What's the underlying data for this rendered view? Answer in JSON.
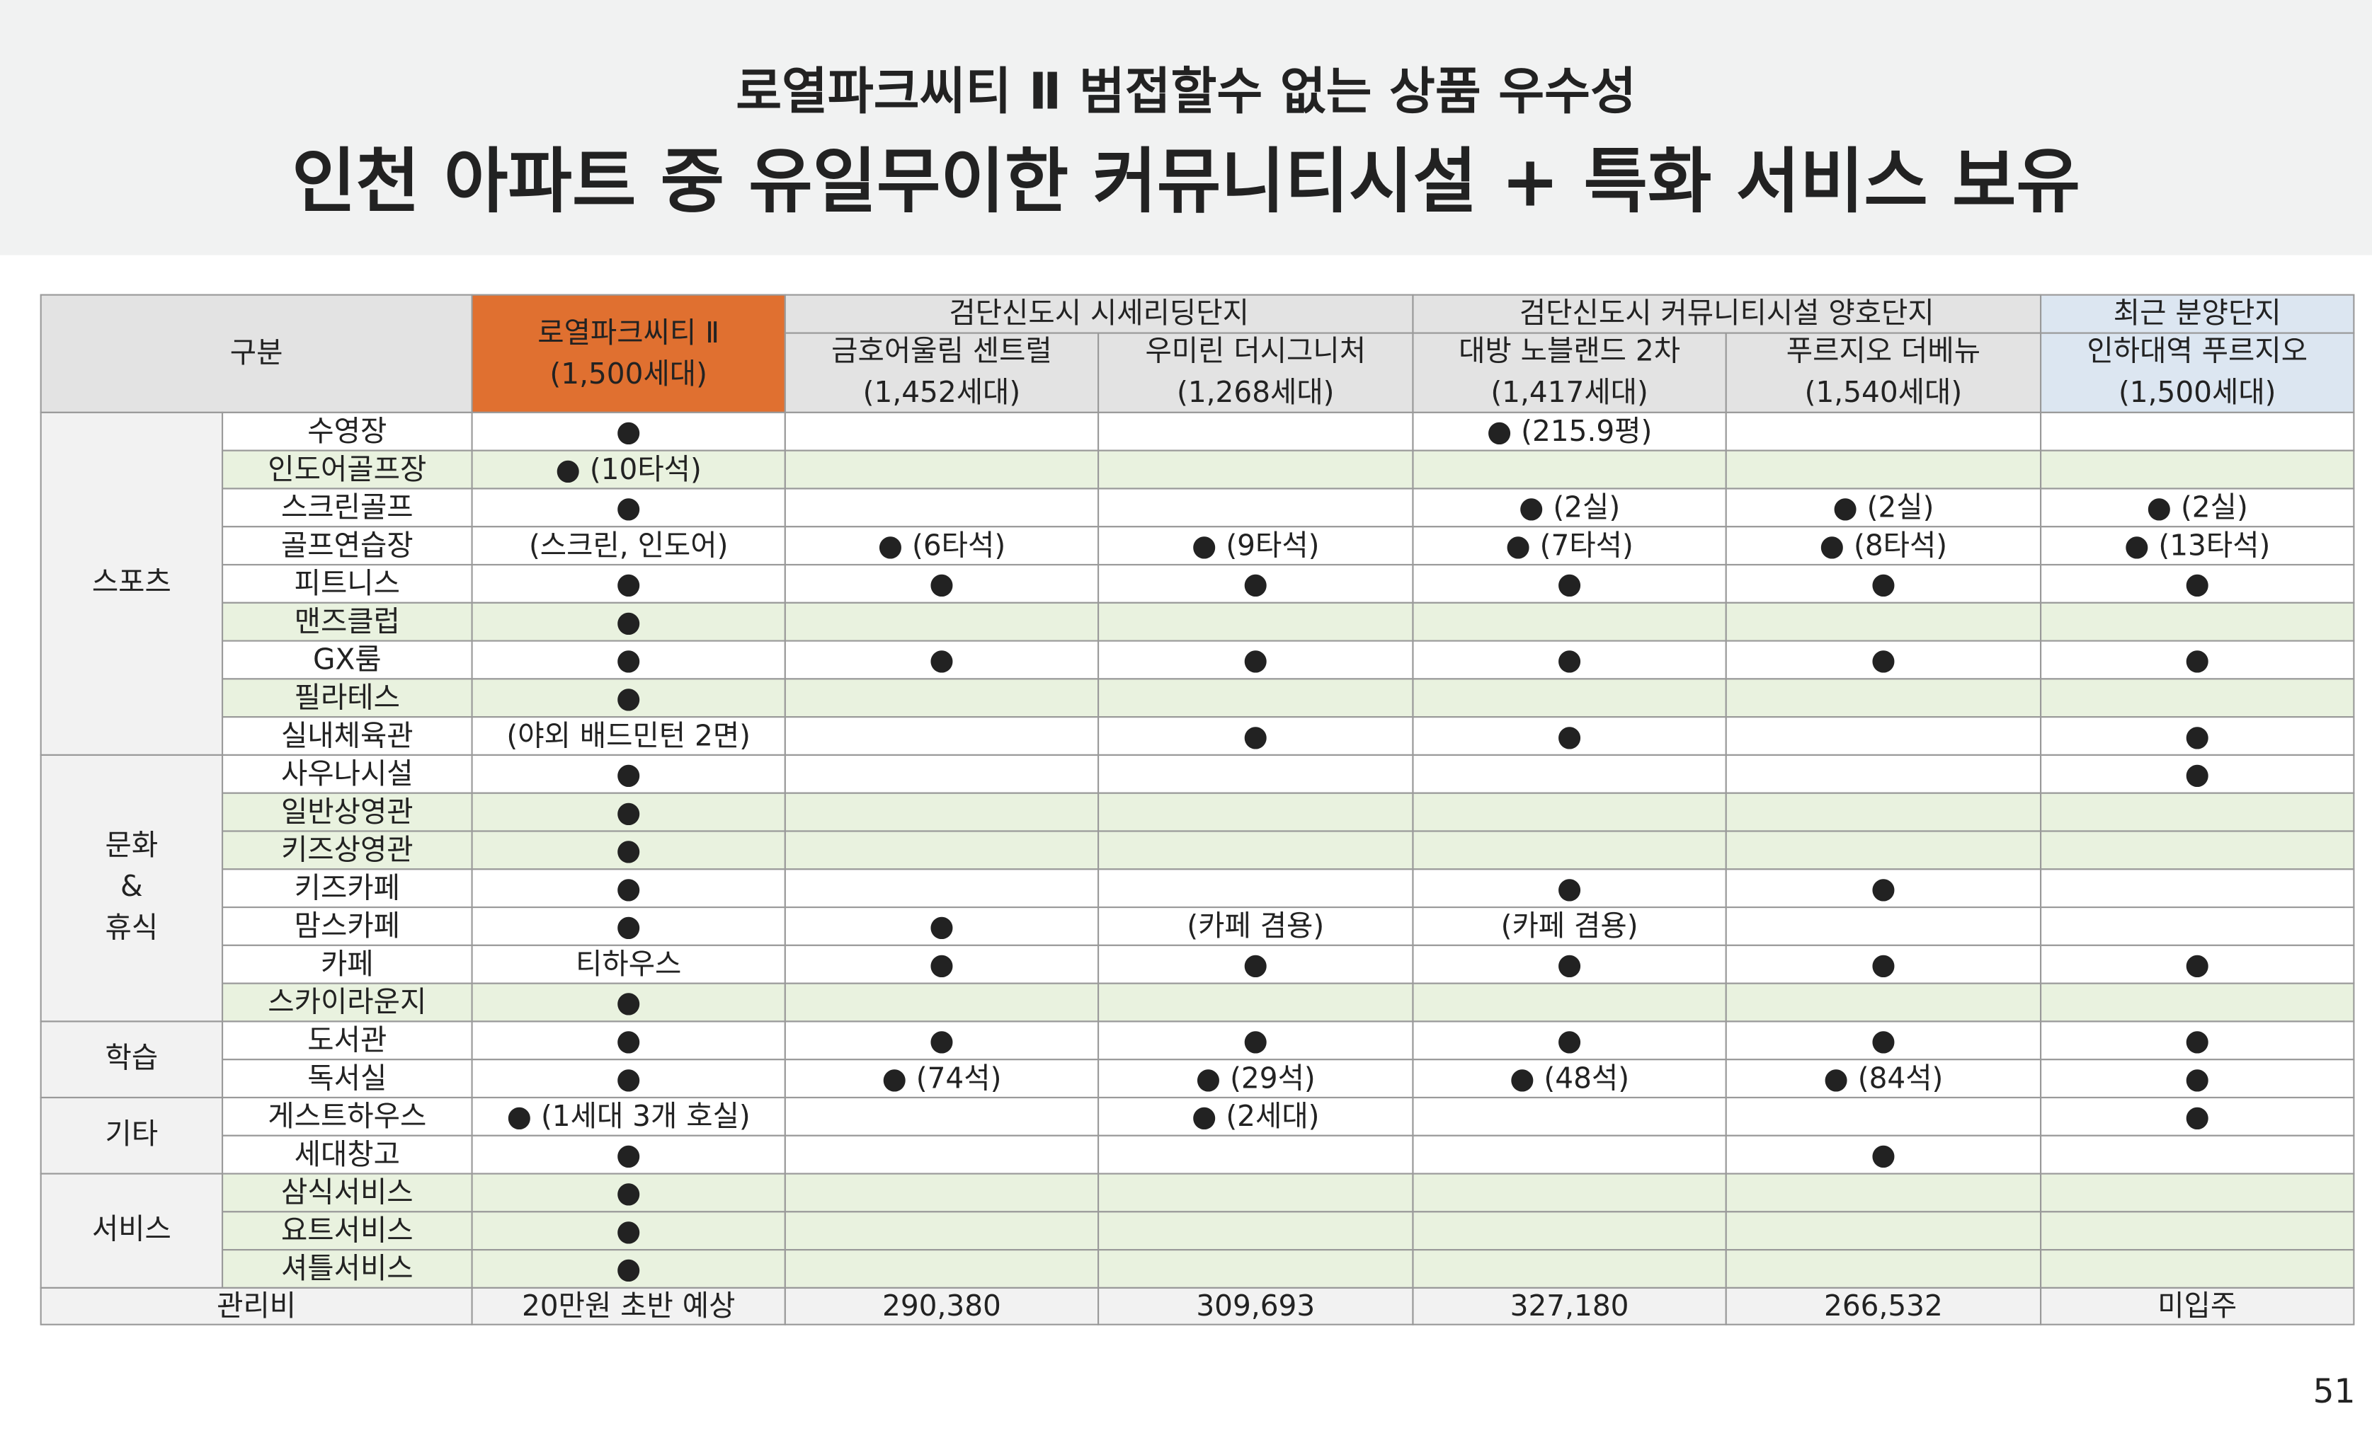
{
  "header": {
    "subtitle": "로열파크씨티 Ⅱ 범접할수 없는 상품 우수성",
    "title": "인천 아파트 중 유일무이한 커뮤니티시설 + 특화 서비스 보유"
  },
  "table": {
    "corner": "구분",
    "highlight": {
      "name": "로열파크씨티 Ⅱ",
      "units": "(1,500세대)"
    },
    "groups": [
      {
        "label": "검단신도시 시세리딩단지",
        "columns": [
          {
            "name": "금호어울림 센트럴",
            "units": "(1,452세대)"
          },
          {
            "name": "우미린 더시그니처",
            "units": "(1,268세대)"
          }
        ]
      },
      {
        "label": "검단신도시 커뮤니티시설 양호단지",
        "columns": [
          {
            "name": "대방 노블랜드 2차",
            "units": "(1,417세대)"
          },
          {
            "name": "푸르지오 더베뉴",
            "units": "(1,540세대)"
          }
        ]
      },
      {
        "label": "최근 분양단지",
        "columns": [
          {
            "name": "인하대역 푸르지오",
            "units": "(1,500세대)"
          }
        ]
      }
    ],
    "sections": [
      {
        "label": [
          "스포츠"
        ],
        "rows": [
          {
            "item": "수영장",
            "cells": [
              "●",
              null,
              null,
              "● (215.9평)",
              null,
              null
            ]
          },
          {
            "item": "인도어골프장",
            "cells": [
              "● (10타석)",
              null,
              null,
              null,
              null,
              null
            ]
          },
          {
            "item": "스크린골프",
            "cells": [
              "●",
              null,
              null,
              "● (2실)",
              "● (2실)",
              "● (2실)"
            ]
          },
          {
            "item": "골프연습장",
            "cells": [
              "(스크린, 인도어)",
              "● (6타석)",
              "● (9타석)",
              "● (7타석)",
              "● (8타석)",
              "● (13타석)"
            ]
          },
          {
            "item": "피트니스",
            "cells": [
              "●",
              "●",
              "●",
              "●",
              "●",
              "●"
            ]
          },
          {
            "item": "맨즈클럽",
            "cells": [
              "●",
              null,
              null,
              null,
              null,
              null
            ]
          },
          {
            "item": "GX룸",
            "cells": [
              "●",
              "●",
              "●",
              "●",
              "●",
              "●"
            ]
          },
          {
            "item": "필라테스",
            "cells": [
              "●",
              null,
              null,
              null,
              null,
              null
            ]
          },
          {
            "item": "실내체육관",
            "cells": [
              "(야외 배드민턴 2면)",
              null,
              "●",
              "●",
              null,
              "●"
            ]
          }
        ]
      },
      {
        "label": [
          "문화",
          "&",
          "휴식"
        ],
        "rows": [
          {
            "item": "사우나시설",
            "cells": [
              "●",
              null,
              null,
              null,
              null,
              "●"
            ]
          },
          {
            "item": "일반상영관",
            "cells": [
              "●",
              null,
              null,
              null,
              null,
              null
            ]
          },
          {
            "item": "키즈상영관",
            "cells": [
              "●",
              null,
              null,
              null,
              null,
              null
            ]
          },
          {
            "item": "키즈카페",
            "cells": [
              "●",
              null,
              null,
              "●",
              "●",
              null
            ]
          },
          {
            "item": "맘스카페",
            "cells": [
              "●",
              "●",
              "(카페 겸용)",
              "(카페 겸용)",
              null,
              null
            ]
          },
          {
            "item": "카페",
            "cells": [
              "티하우스",
              "●",
              "●",
              "●",
              "●",
              "●"
            ]
          },
          {
            "item": "스카이라운지",
            "cells": [
              "●",
              null,
              null,
              null,
              null,
              null
            ]
          }
        ]
      },
      {
        "label": [
          "학습"
        ],
        "rows": [
          {
            "item": "도서관",
            "cells": [
              "●",
              "●",
              "●",
              "●",
              "●",
              "●"
            ]
          },
          {
            "item": "독서실",
            "cells": [
              "●",
              "● (74석)",
              "● (29석)",
              "● (48석)",
              "● (84석)",
              "●"
            ]
          }
        ]
      },
      {
        "label": [
          "기타"
        ],
        "rows": [
          {
            "item": "게스트하우스",
            "cells": [
              "● (1세대 3개 호실)",
              null,
              "● (2세대)",
              null,
              null,
              "●"
            ]
          },
          {
            "item": "세대창고",
            "cells": [
              "●",
              null,
              null,
              null,
              "●",
              null
            ]
          }
        ]
      },
      {
        "label": [
          "서비스"
        ],
        "rows": [
          {
            "item": "삼식서비스",
            "cells": [
              "●",
              null,
              null,
              null,
              null,
              null
            ]
          },
          {
            "item": "요트서비스",
            "cells": [
              "●",
              null,
              null,
              null,
              null,
              null
            ]
          },
          {
            "item": "셔틀서비스",
            "cells": [
              "●",
              null,
              null,
              null,
              null,
              null
            ]
          }
        ]
      }
    ],
    "footer": {
      "label": "관리비",
      "cells": [
        "20만원 초반 예상",
        "290,380",
        "309,693",
        "327,180",
        "266,532",
        "미입주"
      ]
    }
  },
  "page_number": "51"
}
